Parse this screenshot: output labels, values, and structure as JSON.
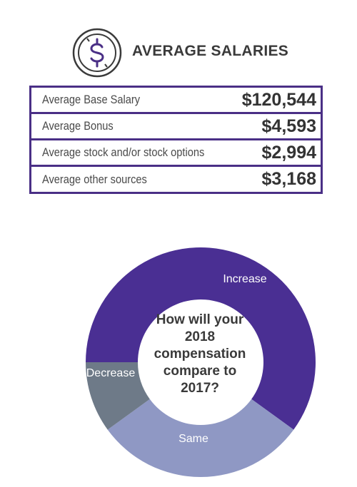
{
  "header": {
    "title": "AVERAGE SALARIES",
    "icon": "dollar-sign-icon",
    "accent_color": "#4a2f86"
  },
  "salaries": [
    {
      "label": "Average Base Salary",
      "value": "$120,544"
    },
    {
      "label": "Average Bonus",
      "value": "$4,593"
    },
    {
      "label": "Average stock and/or stock options",
      "value": "$2,994"
    },
    {
      "label": "Average other sources",
      "value": "$3,168"
    }
  ],
  "chart_data": {
    "type": "pie",
    "donut": true,
    "title": "How will your 2018 compensation compare to 2017?",
    "slices": [
      {
        "label": "Increase",
        "value": 60,
        "color": "#4a2f93"
      },
      {
        "label": "Same",
        "value": 30,
        "color": "#8f98c4"
      },
      {
        "label": "Decrease",
        "value": 10,
        "color": "#6e7a88"
      }
    ]
  }
}
